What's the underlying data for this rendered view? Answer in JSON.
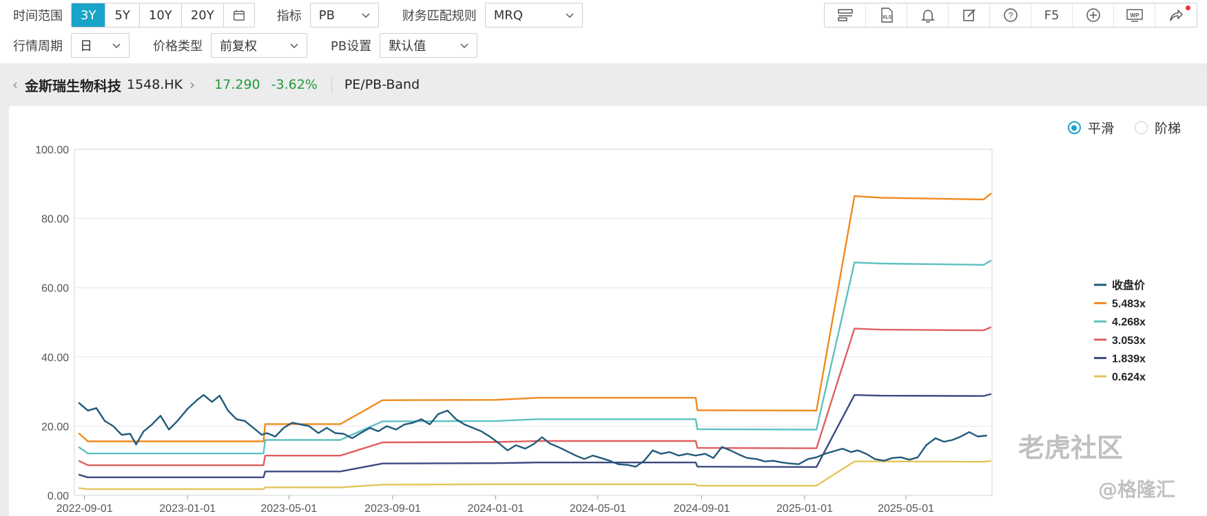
{
  "toolbar": {
    "time_range_label": "时间范围",
    "time_ranges": [
      "3Y",
      "5Y",
      "10Y",
      "20Y"
    ],
    "time_range_active": "3Y",
    "indicator_label": "指标",
    "indicator_value": "PB",
    "fin_rule_label": "财务匹配规则",
    "fin_rule_value": "MRQ",
    "period_label": "行情周期",
    "period_value": "日",
    "price_type_label": "价格类型",
    "price_type_value": "前复权",
    "pb_setting_label": "PB设置",
    "pb_setting_value": "默认值",
    "right_icons": [
      "layout-icon",
      "xls-export-icon",
      "bell-icon",
      "edit-icon",
      "help-icon",
      "f5-refresh",
      "add-icon",
      "wp-icon",
      "share-icon"
    ],
    "xls_text": "XLS",
    "f5_text": "F5",
    "wp_text": "WP"
  },
  "stock": {
    "name": "金斯瑞生物科技",
    "code": "1548.HK",
    "price": "17.290",
    "change": "-3.62%",
    "mode": "PE/PB-Band",
    "change_color": "#1f9a3c"
  },
  "options": {
    "smooth": "平滑",
    "step": "阶梯",
    "selected": "平滑"
  },
  "watermarks": {
    "community": "老虎社区",
    "gelonghui": "@格隆汇"
  },
  "chart_data": {
    "type": "line",
    "x_axis_type": "date",
    "x_range": [
      "2022-08-20",
      "2025-08-11"
    ],
    "ylim": [
      0,
      100
    ],
    "y_ticks": [
      "0.00",
      "20.00",
      "40.00",
      "60.00",
      "80.00",
      "100.00"
    ],
    "x_ticks": [
      "2022-09-01",
      "2023-01-01",
      "2023-05-01",
      "2023-09-01",
      "2024-01-01",
      "2024-05-01",
      "2024-09-01",
      "2025-01-01",
      "2025-05-01"
    ],
    "grid": true,
    "legend_position": "right",
    "series": [
      {
        "name": "收盘价",
        "color": "#1f5a7a",
        "points": [
          [
            "2022-08-25",
            26.8
          ],
          [
            "2022-09-05",
            24.5
          ],
          [
            "2022-09-15",
            25.2
          ],
          [
            "2022-09-25",
            21.5
          ],
          [
            "2022-10-05",
            20.0
          ],
          [
            "2022-10-15",
            17.5
          ],
          [
            "2022-10-25",
            17.8
          ],
          [
            "2022-11-01",
            14.7
          ],
          [
            "2022-11-10",
            18.5
          ],
          [
            "2022-11-20",
            20.5
          ],
          [
            "2022-11-30",
            23.0
          ],
          [
            "2022-12-10",
            19.0
          ],
          [
            "2022-12-20",
            21.5
          ],
          [
            "2023-01-01",
            25.0
          ],
          [
            "2023-01-12",
            27.5
          ],
          [
            "2023-01-20",
            29.0
          ],
          [
            "2023-01-30",
            27.0
          ],
          [
            "2023-02-08",
            28.8
          ],
          [
            "2023-02-18",
            24.5
          ],
          [
            "2023-02-28",
            22.0
          ],
          [
            "2023-03-10",
            21.5
          ],
          [
            "2023-03-20",
            19.5
          ],
          [
            "2023-03-30",
            17.5
          ],
          [
            "2023-04-05",
            18.0
          ],
          [
            "2023-04-15",
            17.0
          ],
          [
            "2023-04-25",
            19.5
          ],
          [
            "2023-05-05",
            21.0
          ],
          [
            "2023-05-15",
            20.5
          ],
          [
            "2023-05-25",
            20.0
          ],
          [
            "2023-06-05",
            18.0
          ],
          [
            "2023-06-15",
            19.5
          ],
          [
            "2023-06-25",
            18.0
          ],
          [
            "2023-07-05",
            17.8
          ],
          [
            "2023-07-15",
            16.5
          ],
          [
            "2023-07-25",
            18.0
          ],
          [
            "2023-08-05",
            19.5
          ],
          [
            "2023-08-15",
            18.5
          ],
          [
            "2023-08-25",
            20.0
          ],
          [
            "2023-09-05",
            19.0
          ],
          [
            "2023-09-15",
            20.5
          ],
          [
            "2023-09-25",
            21.0
          ],
          [
            "2023-10-05",
            22.0
          ],
          [
            "2023-10-15",
            20.5
          ],
          [
            "2023-10-25",
            23.5
          ],
          [
            "2023-11-05",
            24.5
          ],
          [
            "2023-11-15",
            22.0
          ],
          [
            "2023-11-25",
            20.5
          ],
          [
            "2023-12-05",
            19.5
          ],
          [
            "2023-12-15",
            18.5
          ],
          [
            "2023-12-25",
            17.0
          ],
          [
            "2024-01-05",
            15.0
          ],
          [
            "2024-01-15",
            13.0
          ],
          [
            "2024-01-25",
            14.5
          ],
          [
            "2024-02-05",
            13.5
          ],
          [
            "2024-02-15",
            14.8
          ],
          [
            "2024-02-25",
            16.8
          ],
          [
            "2024-03-05",
            15.0
          ],
          [
            "2024-03-15",
            14.0
          ],
          [
            "2024-03-25",
            12.8
          ],
          [
            "2024-04-05",
            11.5
          ],
          [
            "2024-04-15",
            10.5
          ],
          [
            "2024-04-25",
            11.5
          ],
          [
            "2024-05-05",
            10.8
          ],
          [
            "2024-05-15",
            10.0
          ],
          [
            "2024-05-25",
            9.0
          ],
          [
            "2024-06-05",
            8.8
          ],
          [
            "2024-06-15",
            8.3
          ],
          [
            "2024-06-25",
            10.0
          ],
          [
            "2024-07-05",
            13.0
          ],
          [
            "2024-07-15",
            12.0
          ],
          [
            "2024-07-25",
            12.5
          ],
          [
            "2024-08-05",
            11.5
          ],
          [
            "2024-08-15",
            12.0
          ],
          [
            "2024-08-25",
            11.5
          ],
          [
            "2024-09-05",
            12.0
          ],
          [
            "2024-09-15",
            10.8
          ],
          [
            "2024-09-25",
            14.0
          ],
          [
            "2024-10-05",
            13.0
          ],
          [
            "2024-10-15",
            11.8
          ],
          [
            "2024-10-25",
            10.8
          ],
          [
            "2024-11-05",
            10.5
          ],
          [
            "2024-11-15",
            9.8
          ],
          [
            "2024-11-25",
            10.0
          ],
          [
            "2024-12-05",
            9.5
          ],
          [
            "2024-12-15",
            9.2
          ],
          [
            "2024-12-25",
            9.0
          ],
          [
            "2025-01-05",
            10.5
          ],
          [
            "2025-01-15",
            11.0
          ],
          [
            "2025-01-25",
            12.0
          ],
          [
            "2025-02-05",
            12.8
          ],
          [
            "2025-02-15",
            13.5
          ],
          [
            "2025-02-25",
            12.5
          ],
          [
            "2025-03-05",
            13.0
          ],
          [
            "2025-03-15",
            12.0
          ],
          [
            "2025-03-25",
            10.5
          ],
          [
            "2025-04-05",
            10.0
          ],
          [
            "2025-04-15",
            10.8
          ],
          [
            "2025-04-25",
            11.0
          ],
          [
            "2025-05-05",
            10.3
          ],
          [
            "2025-05-15",
            11.0
          ],
          [
            "2025-05-25",
            14.5
          ],
          [
            "2025-06-05",
            16.5
          ],
          [
            "2025-06-15",
            15.5
          ],
          [
            "2025-06-25",
            16.0
          ],
          [
            "2025-07-05",
            17.0
          ],
          [
            "2025-07-15",
            18.3
          ],
          [
            "2025-07-25",
            17.0
          ],
          [
            "2025-08-05",
            17.3
          ]
        ]
      },
      {
        "name": "5.483x",
        "color": "#ef8a1e",
        "points": [
          [
            "2022-08-25",
            18.0
          ],
          [
            "2022-09-05",
            15.6
          ],
          [
            "2023-04-01",
            15.6
          ],
          [
            "2023-04-03",
            20.6
          ],
          [
            "2023-07-01",
            20.6
          ],
          [
            "2023-08-20",
            27.5
          ],
          [
            "2024-01-01",
            27.6
          ],
          [
            "2024-02-20",
            28.2
          ],
          [
            "2024-08-25",
            28.2
          ],
          [
            "2024-08-27",
            24.6
          ],
          [
            "2025-01-15",
            24.5
          ],
          [
            "2025-03-01",
            86.5
          ],
          [
            "2025-04-01",
            86.0
          ],
          [
            "2025-08-01",
            85.5
          ],
          [
            "2025-08-10",
            87.3
          ]
        ]
      },
      {
        "name": "4.268x",
        "color": "#5cc1bf",
        "points": [
          [
            "2022-08-25",
            14.0
          ],
          [
            "2022-09-05",
            12.1
          ],
          [
            "2023-04-01",
            12.1
          ],
          [
            "2023-04-03",
            16.0
          ],
          [
            "2023-07-01",
            16.0
          ],
          [
            "2023-08-20",
            21.4
          ],
          [
            "2024-01-01",
            21.5
          ],
          [
            "2024-02-20",
            22.0
          ],
          [
            "2024-08-25",
            22.0
          ],
          [
            "2024-08-27",
            19.1
          ],
          [
            "2025-01-15",
            19.0
          ],
          [
            "2025-03-01",
            67.3
          ],
          [
            "2025-04-01",
            67.0
          ],
          [
            "2025-08-01",
            66.6
          ],
          [
            "2025-08-10",
            67.9
          ]
        ]
      },
      {
        "name": "3.053x",
        "color": "#e05e5e",
        "points": [
          [
            "2022-08-25",
            10.0
          ],
          [
            "2022-09-05",
            8.7
          ],
          [
            "2023-04-01",
            8.7
          ],
          [
            "2023-04-03",
            11.5
          ],
          [
            "2023-07-01",
            11.5
          ],
          [
            "2023-08-20",
            15.3
          ],
          [
            "2024-01-01",
            15.4
          ],
          [
            "2024-02-20",
            15.7
          ],
          [
            "2024-08-25",
            15.7
          ],
          [
            "2024-08-27",
            13.7
          ],
          [
            "2025-01-15",
            13.6
          ],
          [
            "2025-03-01",
            48.2
          ],
          [
            "2025-04-01",
            47.9
          ],
          [
            "2025-08-01",
            47.7
          ],
          [
            "2025-08-10",
            48.6
          ]
        ]
      },
      {
        "name": "1.839x",
        "color": "#3b4a80",
        "points": [
          [
            "2022-08-25",
            6.0
          ],
          [
            "2022-09-05",
            5.2
          ],
          [
            "2023-04-01",
            5.2
          ],
          [
            "2023-04-03",
            6.9
          ],
          [
            "2023-07-01",
            6.9
          ],
          [
            "2023-08-20",
            9.2
          ],
          [
            "2024-01-01",
            9.3
          ],
          [
            "2024-02-20",
            9.5
          ],
          [
            "2024-08-25",
            9.5
          ],
          [
            "2024-08-27",
            8.3
          ],
          [
            "2025-01-15",
            8.2
          ],
          [
            "2025-03-01",
            29.0
          ],
          [
            "2025-04-01",
            28.8
          ],
          [
            "2025-08-01",
            28.7
          ],
          [
            "2025-08-10",
            29.3
          ]
        ]
      },
      {
        "name": "0.624x",
        "color": "#e3c45a",
        "points": [
          [
            "2022-08-25",
            2.1
          ],
          [
            "2022-09-05",
            1.8
          ],
          [
            "2023-04-01",
            1.8
          ],
          [
            "2023-04-03",
            2.3
          ],
          [
            "2023-07-01",
            2.3
          ],
          [
            "2023-08-20",
            3.1
          ],
          [
            "2024-01-01",
            3.2
          ],
          [
            "2024-02-20",
            3.2
          ],
          [
            "2024-08-25",
            3.2
          ],
          [
            "2024-08-27",
            2.8
          ],
          [
            "2025-01-15",
            2.8
          ],
          [
            "2025-03-01",
            9.8
          ],
          [
            "2025-04-01",
            9.8
          ],
          [
            "2025-08-01",
            9.7
          ],
          [
            "2025-08-10",
            10.0
          ]
        ]
      }
    ]
  }
}
